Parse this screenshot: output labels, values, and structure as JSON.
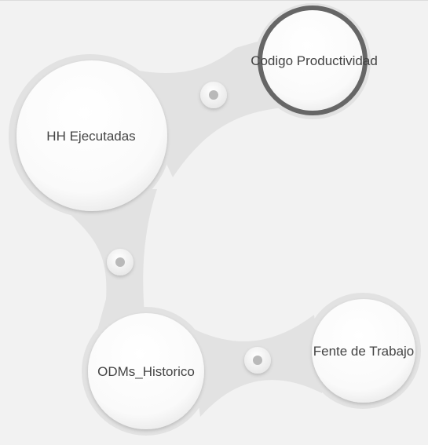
{
  "nodes": [
    {
      "id": "hh",
      "label": "HH Ejecutadas",
      "selected": false
    },
    {
      "id": "codigo",
      "label": "Codigo Productividad",
      "selected": true
    },
    {
      "id": "odm",
      "label": "ODMs_Historico",
      "selected": false
    },
    {
      "id": "fente",
      "label": "Fente de Trabajo",
      "selected": false
    }
  ],
  "links": [
    {
      "from": "hh",
      "to": "codigo"
    },
    {
      "from": "hh",
      "to": "odm"
    },
    {
      "from": "odm",
      "to": "fente"
    }
  ],
  "colors": {
    "background": "#f2f2f2",
    "connector": "#e2e2e2",
    "node_fill": "#ffffff",
    "selected_ring": "#666666",
    "text": "#444444",
    "link_dot": "#b9b9b9"
  }
}
